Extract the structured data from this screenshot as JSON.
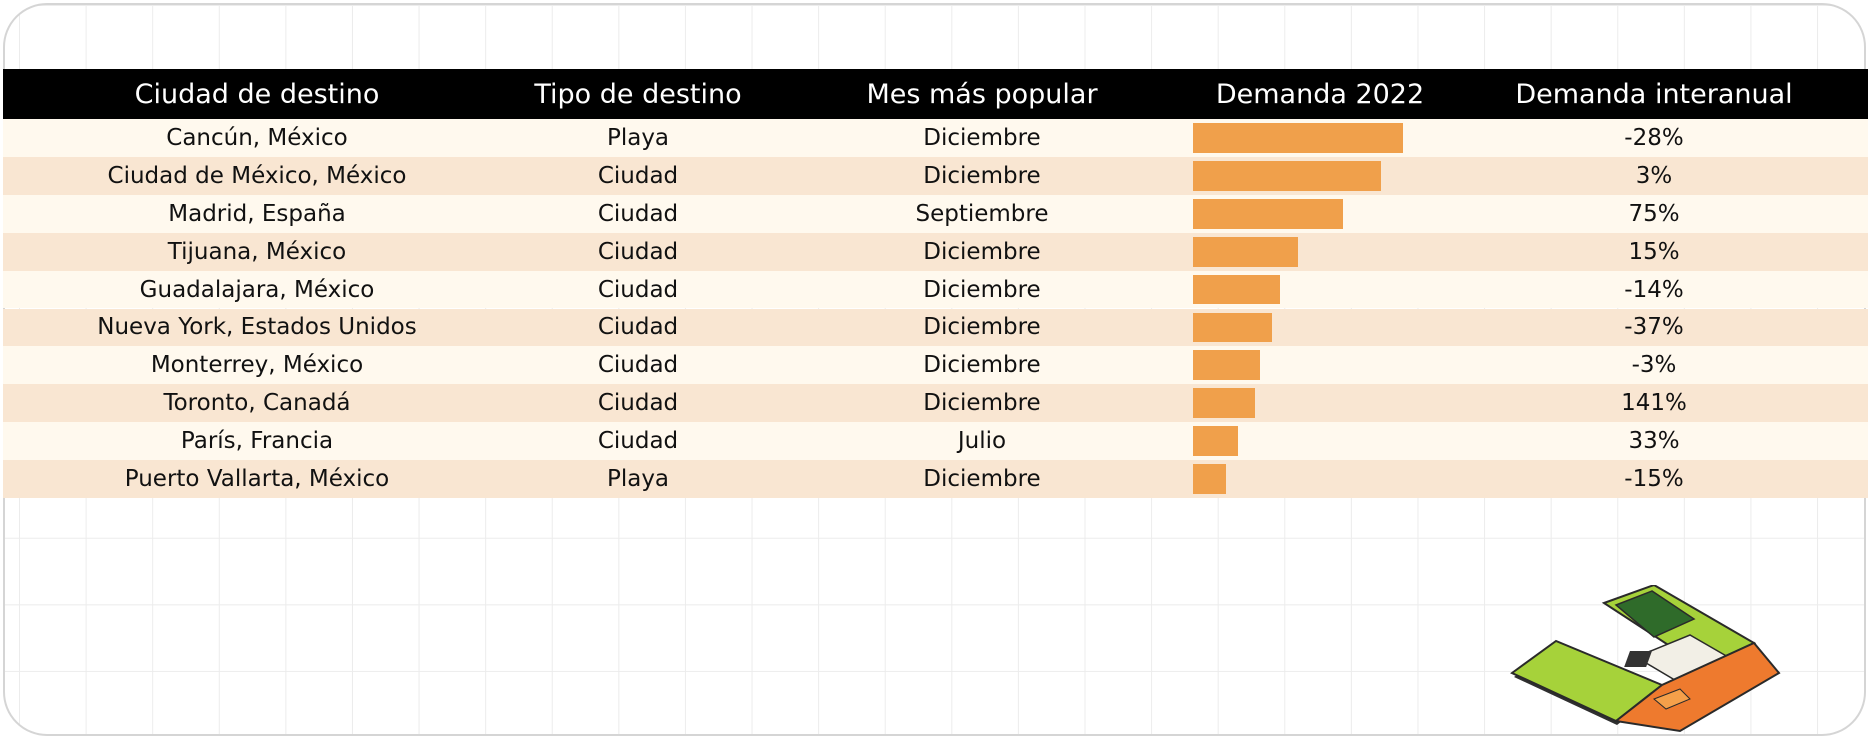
{
  "table": {
    "headers": [
      "Ciudad de destino",
      "Tipo de destino",
      "Mes más popular",
      "Demanda 2022",
      "Demanda interanual"
    ],
    "rows": [
      {
        "city": "Cancún, México",
        "type": "Playa",
        "month": "Diciembre",
        "yoy": "-28%"
      },
      {
        "city": "Ciudad de México, México",
        "type": "Ciudad",
        "month": "Diciembre",
        "yoy": "3%"
      },
      {
        "city": "Madrid, España",
        "type": "Ciudad",
        "month": "Septiembre",
        "yoy": "75%"
      },
      {
        "city": "Tijuana, México",
        "type": "Ciudad",
        "month": "Diciembre",
        "yoy": "15%"
      },
      {
        "city": "Guadalajara, México",
        "type": "Ciudad",
        "month": "Diciembre",
        "yoy": "-14%"
      },
      {
        "city": "Nueva York, Estados Unidos",
        "type": "Ciudad",
        "month": "Diciembre",
        "yoy": "-37%"
      },
      {
        "city": "Monterrey, México",
        "type": "Ciudad",
        "month": "Diciembre",
        "yoy": "-3%"
      },
      {
        "city": "Toronto, Canadá",
        "type": "Ciudad",
        "month": "Diciembre",
        "yoy": "141%"
      },
      {
        "city": "París, Francia",
        "type": "Ciudad",
        "month": "Julio",
        "yoy": "33%"
      },
      {
        "city": "Puerto Vallarta, México",
        "type": "Playa",
        "month": "Diciembre",
        "yoy": "-15%"
      }
    ]
  },
  "chart_data": {
    "type": "bar",
    "orientation": "horizontal",
    "categories": [
      "Cancún, México",
      "Ciudad de México, México",
      "Madrid, España",
      "Tijuana, México",
      "Guadalajara, México",
      "Nueva York, Estados Unidos",
      "Monterrey, México",
      "Toronto, Canadá",
      "París, Francia",
      "Puerto Vallarta, México"
    ],
    "values": [
      100,
      89.5,
      71.5,
      50,
      41.5,
      37.5,
      32,
      29.5,
      21.5,
      15.5
    ],
    "xlim": [
      0,
      100
    ],
    "title": "",
    "xlabel": "",
    "ylabel": "",
    "grid": false,
    "bar_color": "#f0a04b"
  },
  "colors": {
    "header_bg": "#000000",
    "row_light": "#fff9ee",
    "row_dark": "#f9e6d2",
    "bar": "#f0a04b"
  },
  "illustration": {
    "icon": "travel-wallet-illustration"
  }
}
